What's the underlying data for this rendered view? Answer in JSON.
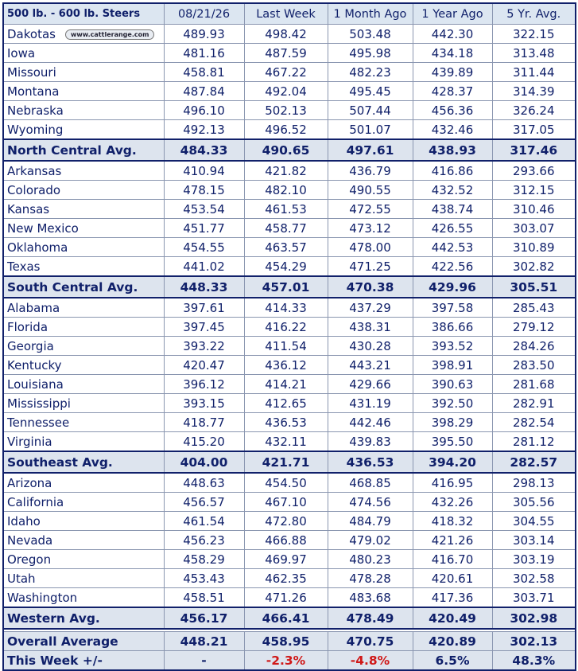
{
  "header": [
    "500 lb. - 600 lb.  Steers",
    "08/21/26",
    "Last Week",
    "1 Month Ago",
    "1 Year Ago",
    "5 Yr. Avg."
  ],
  "logo": "www.cattlerange.com",
  "sections": [
    {
      "rows": [
        [
          "Dakotas",
          "489.93",
          "498.42",
          "503.48",
          "442.30",
          "322.15"
        ],
        [
          "Iowa",
          "481.16",
          "487.59",
          "495.98",
          "434.18",
          "313.48"
        ],
        [
          "Missouri",
          "458.81",
          "467.22",
          "482.23",
          "439.89",
          "311.44"
        ],
        [
          "Montana",
          "487.84",
          "492.04",
          "495.45",
          "428.37",
          "314.39"
        ],
        [
          "Nebraska",
          "496.10",
          "502.13",
          "507.44",
          "456.36",
          "326.24"
        ],
        [
          "Wyoming",
          "492.13",
          "496.52",
          "501.07",
          "432.46",
          "317.05"
        ]
      ],
      "avg": [
        "North Central Avg.",
        "484.33",
        "490.65",
        "497.61",
        "438.93",
        "317.46"
      ]
    },
    {
      "rows": [
        [
          "Arkansas",
          "410.94",
          "421.82",
          "436.79",
          "416.86",
          "293.66"
        ],
        [
          "Colorado",
          "478.15",
          "482.10",
          "490.55",
          "432.52",
          "312.15"
        ],
        [
          "Kansas",
          "453.54",
          "461.53",
          "472.55",
          "438.74",
          "310.46"
        ],
        [
          "New Mexico",
          "451.77",
          "458.77",
          "473.12",
          "426.55",
          "303.07"
        ],
        [
          "Oklahoma",
          "454.55",
          "463.57",
          "478.00",
          "442.53",
          "310.89"
        ],
        [
          "Texas",
          "441.02",
          "454.29",
          "471.25",
          "422.56",
          "302.82"
        ]
      ],
      "avg": [
        "South Central Avg.",
        "448.33",
        "457.01",
        "470.38",
        "429.96",
        "305.51"
      ]
    },
    {
      "rows": [
        [
          "Alabama",
          "397.61",
          "414.33",
          "437.29",
          "397.58",
          "285.43"
        ],
        [
          "Florida",
          "397.45",
          "416.22",
          "438.31",
          "386.66",
          "279.12"
        ],
        [
          "Georgia",
          "393.22",
          "411.54",
          "430.28",
          "393.52",
          "284.26"
        ],
        [
          "Kentucky",
          "420.47",
          "436.12",
          "443.21",
          "398.91",
          "283.50"
        ],
        [
          "Louisiana",
          "396.12",
          "414.21",
          "429.66",
          "390.63",
          "281.68"
        ],
        [
          "Mississippi",
          "393.15",
          "412.65",
          "431.19",
          "392.50",
          "282.91"
        ],
        [
          "Tennessee",
          "418.77",
          "436.53",
          "442.46",
          "398.29",
          "282.54"
        ],
        [
          "Virginia",
          "415.20",
          "432.11",
          "439.83",
          "395.50",
          "281.12"
        ]
      ],
      "avg": [
        "Southeast Avg.",
        "404.00",
        "421.71",
        "436.53",
        "394.20",
        "282.57"
      ]
    },
    {
      "rows": [
        [
          "Arizona",
          "448.63",
          "454.50",
          "468.85",
          "416.95",
          "298.13"
        ],
        [
          "California",
          "456.57",
          "467.10",
          "474.56",
          "432.26",
          "305.56"
        ],
        [
          "Idaho",
          "461.54",
          "472.80",
          "484.79",
          "418.32",
          "304.55"
        ],
        [
          "Nevada",
          "456.23",
          "466.88",
          "479.02",
          "421.26",
          "303.14"
        ],
        [
          "Oregon",
          "458.29",
          "469.97",
          "480.23",
          "416.70",
          "303.19"
        ],
        [
          "Utah",
          "453.43",
          "462.35",
          "478.28",
          "420.61",
          "302.58"
        ],
        [
          "Washington",
          "458.51",
          "471.26",
          "483.68",
          "417.36",
          "303.71"
        ]
      ],
      "avg": [
        "Western Avg.",
        "456.17",
        "466.41",
        "478.49",
        "420.49",
        "302.98"
      ]
    }
  ],
  "overall": [
    "Overall Average",
    "448.21",
    "458.95",
    "470.75",
    "420.89",
    "302.13"
  ],
  "change": [
    "This Week +/-",
    "-",
    "-2.3%",
    "-4.8%",
    "6.5%",
    "48.3%"
  ]
}
